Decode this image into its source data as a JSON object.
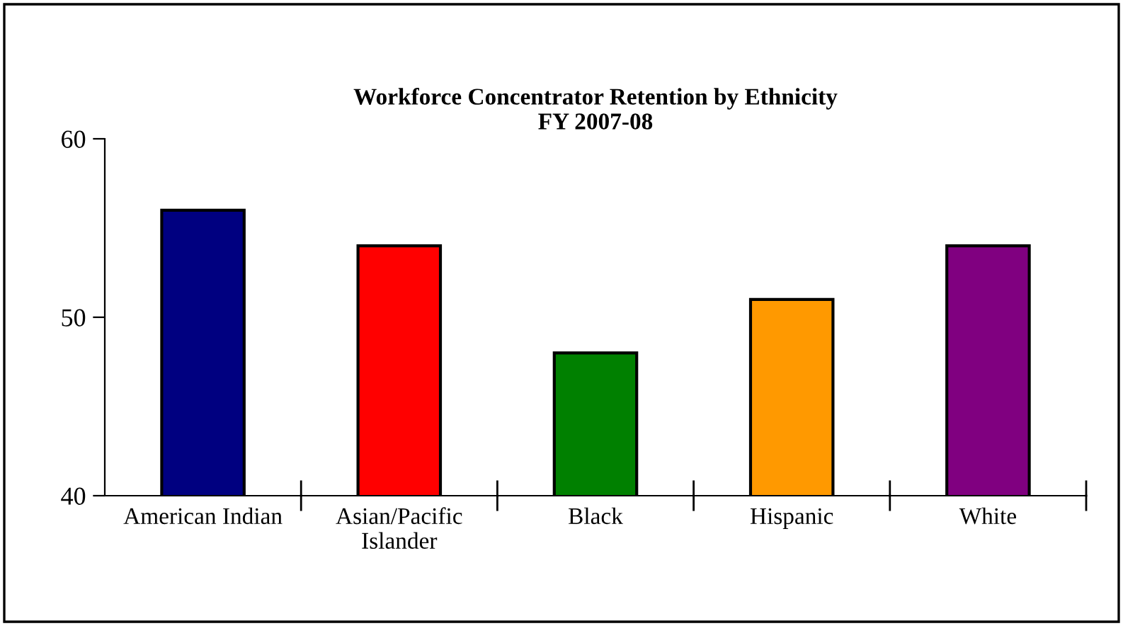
{
  "chart_data": {
    "type": "bar",
    "title": "Workforce Concentrator Retention by Ethnicity\nFY 2007-08",
    "categories": [
      "American Indian",
      "Asian/Pacific\nIslander",
      "Black",
      "Hispanic",
      "White"
    ],
    "values": [
      56,
      54,
      48,
      51,
      54
    ],
    "colors": [
      "#000080",
      "#ff0000",
      "#008000",
      "#ff9900",
      "#800080"
    ],
    "ylim": [
      40,
      60
    ],
    "yticks": [
      40,
      50,
      60
    ],
    "grid": false,
    "legend": false
  }
}
